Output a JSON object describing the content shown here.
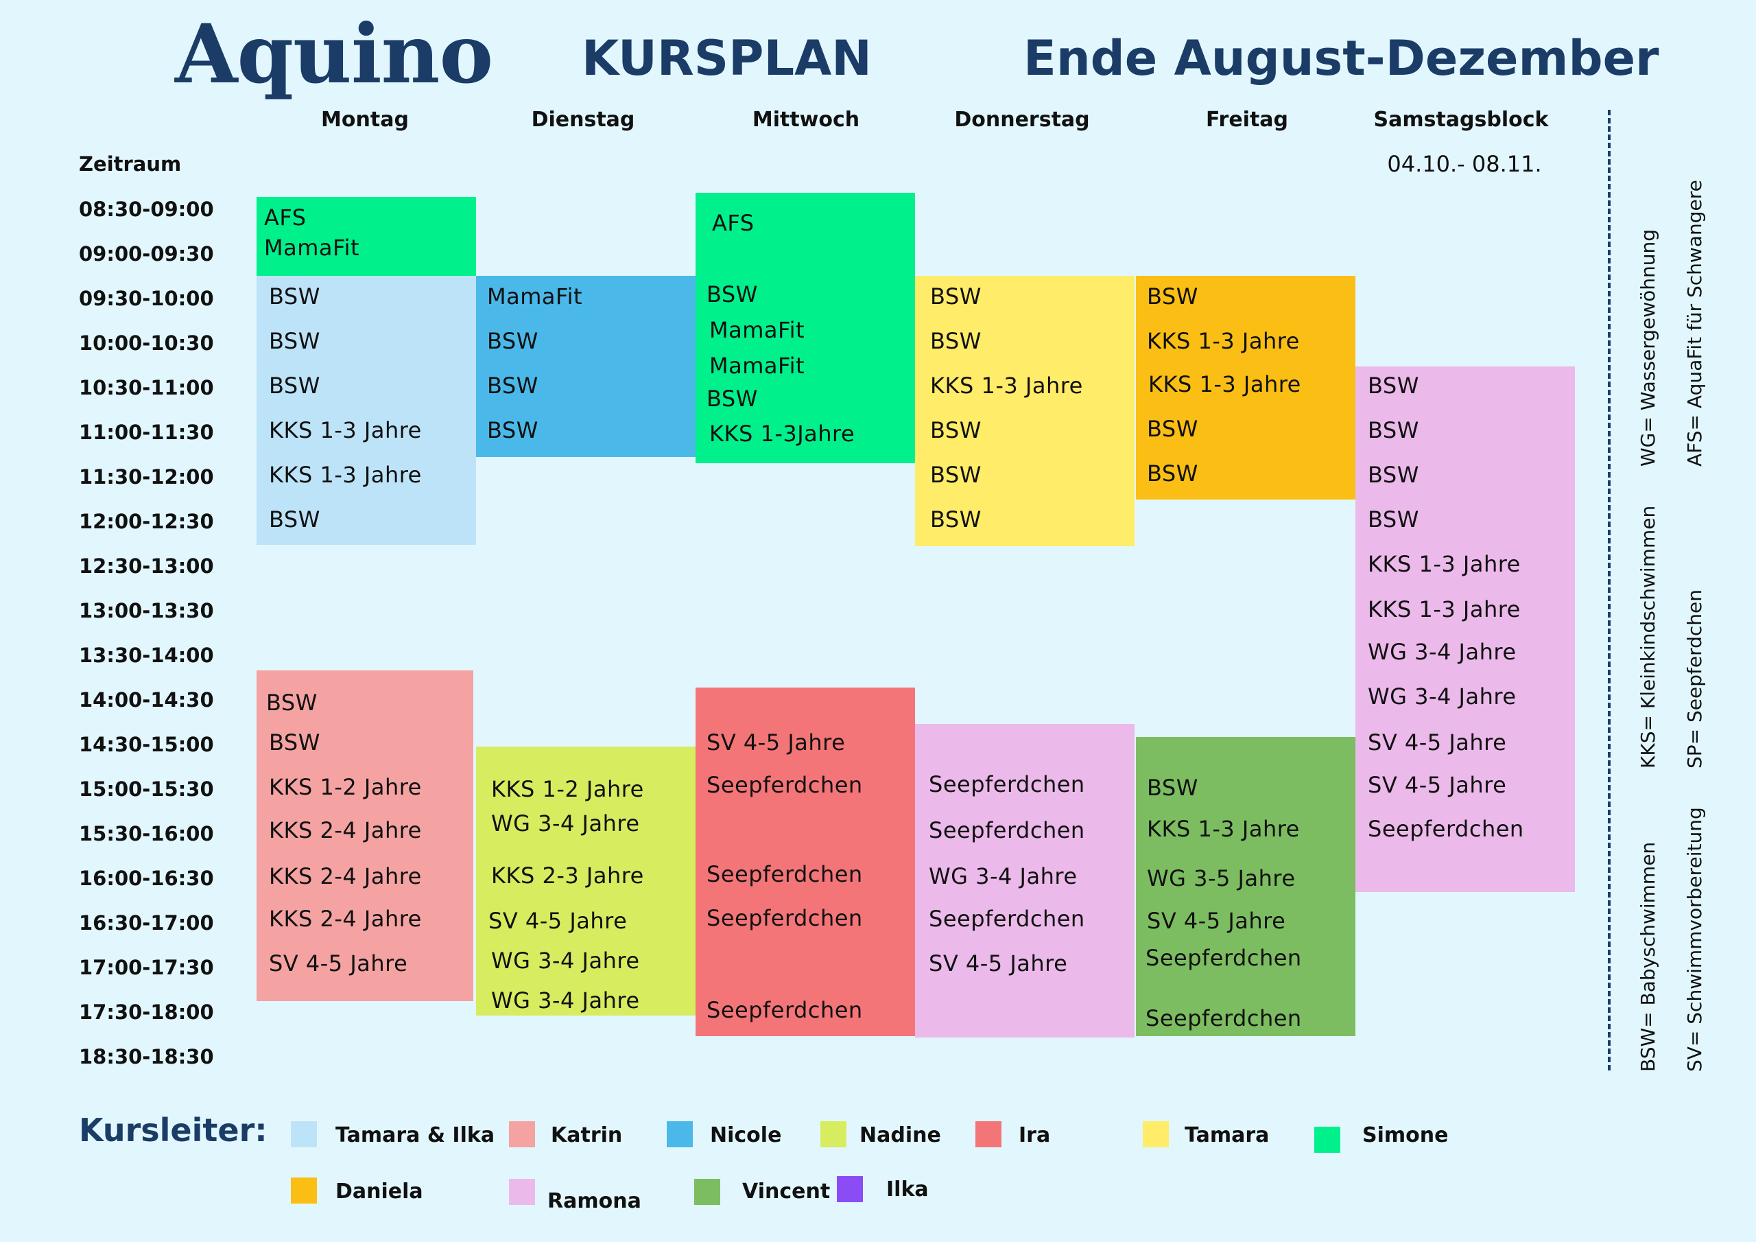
{
  "header": {
    "logo": "Aquino",
    "title": "KURSPLAN",
    "period_title": "Ende August-Dezember"
  },
  "days": [
    "Montag",
    "Dienstag",
    "Mittwoch",
    "Donnerstag",
    "Freitag",
    "Samstagsblock"
  ],
  "zeitraum_label": "Zeitraum",
  "saturday_period": "04.10.- 08.11.",
  "times": [
    "08:30-09:00",
    "09:00-09:30",
    "09:30-10:00",
    "10:00-10:30",
    "10:30-11:00",
    "11:00-11:30",
    "11:30-12:00",
    "12:00-12:30",
    "12:30-13:00",
    "13:00-13:30",
    "13:30-14:00",
    "14:00-14:30",
    "14:30-15:00",
    "15:00-15:30",
    "15:30-16:00",
    "16:00-16:30",
    "16:30-17:00",
    "17:00-17:30",
    "17:30-18:00",
    "18:30-18:30"
  ],
  "blocks": [
    {
      "day": "Montag",
      "instructor": "Simone",
      "color": "#00f08c",
      "entries": [
        "AFS",
        "MamaFit"
      ]
    },
    {
      "day": "Montag",
      "instructor": "Tamara & Ilka",
      "color": "#bde3f8",
      "entries": [
        "BSW",
        "BSW",
        "BSW",
        "KKS 1-3 Jahre",
        "KKS 1-3 Jahre",
        "BSW"
      ]
    },
    {
      "day": "Montag",
      "instructor": "Katrin",
      "color": "#f4a3a2",
      "entries": [
        "BSW",
        "BSW",
        "KKS 1-2 Jahre",
        "KKS 2-4 Jahre",
        "KKS 2-4 Jahre",
        "KKS 2-4 Jahre",
        "SV 4-5 Jahre"
      ]
    },
    {
      "day": "Dienstag",
      "instructor": "Nicole",
      "color": "#4ab9e9",
      "entries": [
        "MamaFit",
        "BSW",
        "BSW",
        "BSW"
      ]
    },
    {
      "day": "Dienstag",
      "instructor": "Nadine",
      "color": "#d7ec5f",
      "entries": [
        "KKS 1-2 Jahre",
        "WG 3-4 Jahre",
        "KKS 2-3 Jahre",
        "SV 4-5 Jahre",
        "WG 3-4 Jahre",
        "WG 3-4 Jahre"
      ]
    },
    {
      "day": "Mittwoch",
      "instructor": "Simone",
      "color": "#00f08c",
      "entries": [
        "AFS",
        "BSW",
        "MamaFit",
        "MamaFit",
        "BSW",
        "KKS 1-3Jahre"
      ]
    },
    {
      "day": "Mittwoch",
      "instructor": "Ira",
      "color": "#f47578",
      "entries": [
        "SV 4-5 Jahre",
        "Seepferdchen",
        "Seepferdchen",
        "Seepferdchen",
        "Seepferdchen"
      ]
    },
    {
      "day": "Donnerstag",
      "instructor": "Tamara",
      "color": "#ffec69",
      "entries": [
        "BSW",
        "BSW",
        "KKS 1-3 Jahre",
        "BSW",
        "BSW",
        "BSW"
      ]
    },
    {
      "day": "Donnerstag",
      "instructor": "Ramona",
      "color": "#ebb9ea",
      "entries": [
        "Seepferdchen",
        "Seepferdchen",
        "WG 3-4 Jahre",
        "Seepferdchen",
        "SV 4-5 Jahre"
      ]
    },
    {
      "day": "Freitag",
      "instructor": "Daniela",
      "color": "#fbbe14",
      "entries": [
        "BSW",
        "KKS 1-3 Jahre",
        "KKS 1-3 Jahre",
        "BSW",
        "BSW"
      ]
    },
    {
      "day": "Freitag",
      "instructor": "Vincent",
      "color": "#7dbd61",
      "entries": [
        "BSW",
        "KKS 1-3 Jahre",
        "WG 3-5 Jahre",
        "SV 4-5 Jahre",
        "Seepferdchen",
        "Seepferdchen"
      ]
    },
    {
      "day": "Samstagsblock",
      "instructor": "Ramona",
      "color": "#ebb9ea",
      "entries": [
        "BSW",
        "BSW",
        "BSW",
        "BSW",
        "KKS 1-3 Jahre",
        "KKS 1-3 Jahre",
        "WG 3-4 Jahre",
        "WG 3-4 Jahre",
        "SV 4-5 Jahre",
        "SV 4-5 Jahre",
        "Seepferdchen"
      ]
    }
  ],
  "abbreviations": [
    "WG= Wassergewöhnung",
    "AFS= AquaFit für Schwangere",
    "KKS= Kleinkindschwimmen",
    "SP= Seepferdchen",
    "BSW= Babyschwimmen",
    "SV= Schwimmvorbereitung"
  ],
  "legend": {
    "title": "Kursleiter:",
    "items": [
      {
        "name": "Tamara  & Ilka",
        "color": "#bde3f8"
      },
      {
        "name": "Katrin",
        "color": "#f4a3a2"
      },
      {
        "name": "Nicole",
        "color": "#4ab9e9"
      },
      {
        "name": "Nadine",
        "color": "#d7ec5f"
      },
      {
        "name": "Ira",
        "color": "#f47578"
      },
      {
        "name": "Tamara",
        "color": "#ffec69"
      },
      {
        "name": "Simone",
        "color": "#00f08c"
      },
      {
        "name": "Daniela",
        "color": "#fbbe14"
      },
      {
        "name": "Ramona",
        "color": "#ebb9ea"
      },
      {
        "name": "Vincent",
        "color": "#7dbd61"
      },
      {
        "name": "Ilka",
        "color": "#8b4cf6"
      }
    ]
  }
}
